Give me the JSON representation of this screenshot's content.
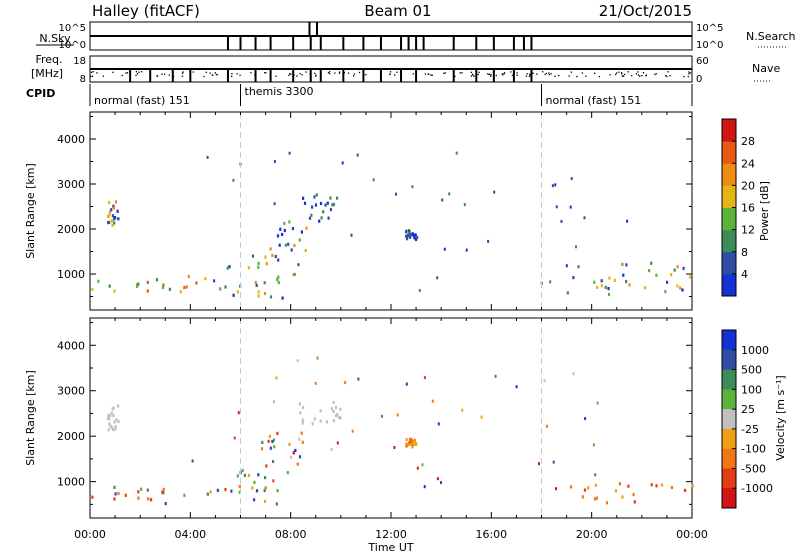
{
  "header": {
    "station": "Halley (fitACF)",
    "beam": "Beam 01",
    "date": "21/Oct/2015"
  },
  "param_panel": {
    "nsky_label": "N.Sky",
    "nsearch_label": "N.Search",
    "nsky_ticks": [
      "10^5",
      "10^0"
    ],
    "nsearch_ticks": [
      "10^5",
      "10^0"
    ],
    "freq_label": "Freq.",
    "freq_unit": "[MHz]",
    "freq_ticks": [
      "18",
      "8"
    ],
    "nave_label": "Nave",
    "nave_ticks": [
      "60",
      "0"
    ],
    "cpid_label": "CPID",
    "cpid_segments": [
      {
        "label": "normal (fast) 151",
        "start_hour": 0,
        "end_hour": 6
      },
      {
        "label": "themis 3300",
        "start_hour": 6,
        "end_hour": 18
      },
      {
        "label": "normal (fast) 151",
        "start_hour": 18,
        "end_hour": 24
      }
    ]
  },
  "x_axis": {
    "label": "Time UT",
    "tick_labels": [
      "00:00",
      "04:00",
      "08:00",
      "12:00",
      "16:00",
      "20:00",
      "00:00"
    ],
    "range_hours": [
      0,
      24
    ],
    "major_step_hours": 4
  },
  "colors": {
    "power": [
      "#1432d2",
      "#2e4ea6",
      "#3c8c5a",
      "#5ab43c",
      "#e6b414",
      "#f08c14",
      "#e65a14",
      "#d21414"
    ],
    "velocity": [
      "#1432d2",
      "#2e4ea6",
      "#3c8c5a",
      "#5ab43c",
      "#c0c0c0",
      "#f0a014",
      "#f07814",
      "#e63c14",
      "#d21414"
    ],
    "ground_scatter": "#c0c0c0",
    "guide_line": "#c8c8c8"
  },
  "chart_data": [
    {
      "type": "heatmap",
      "title": "",
      "xlabel": "Time UT",
      "ylabel": "Slant Range [km]",
      "ylim": [
        200,
        4600
      ],
      "y_tick_labels": [
        "1000",
        "2000",
        "3000",
        "4000"
      ],
      "colorbar": {
        "label": "Power [dB]",
        "range": [
          0,
          32
        ],
        "tick_labels": [
          "4",
          "8",
          "12",
          "16",
          "20",
          "24",
          "28"
        ]
      },
      "scatter_regions": [
        {
          "t": [
            0.0,
            5.5
          ],
          "r": [
            550,
            1000
          ],
          "level": "mixed-high"
        },
        {
          "t": [
            5.5,
            8.3
          ],
          "r": [
            500,
            1300
          ],
          "level": "mixed"
        },
        {
          "t": [
            6.8,
            8.6
          ],
          "r": [
            1300,
            2200
          ],
          "level": "mixed"
        },
        {
          "t": [
            8.3,
            10.0
          ],
          "r": [
            2200,
            2800
          ],
          "level": "low"
        },
        {
          "t": [
            0.6,
            1.1
          ],
          "r": [
            2100,
            2700
          ],
          "level": "mixed"
        },
        {
          "t": [
            12.5,
            13.0
          ],
          "r": [
            1800,
            2000
          ],
          "level": "low"
        },
        {
          "t": [
            19.0,
            24.0
          ],
          "r": [
            550,
            1300
          ],
          "level": "mixed"
        }
      ]
    },
    {
      "type": "heatmap",
      "title": "",
      "xlabel": "Time UT",
      "ylabel": "Slant Range [km]",
      "ylim": [
        200,
        4600
      ],
      "y_tick_labels": [
        "1000",
        "2000",
        "3000",
        "4000"
      ],
      "colorbar": {
        "label": "Velocity [m s⁻¹]",
        "tick_labels": [
          "1000",
          "500",
          "100",
          "25",
          "-25",
          "-100",
          "-500",
          "-1000"
        ]
      },
      "scatter_regions": [
        {
          "t": [
            0.0,
            5.5
          ],
          "r": [
            550,
            1000
          ],
          "level": "negative-mixed"
        },
        {
          "t": [
            5.5,
            8.3
          ],
          "r": [
            500,
            1300
          ],
          "level": "positive-mixed"
        },
        {
          "t": [
            6.8,
            8.6
          ],
          "r": [
            1300,
            2200
          ],
          "level": "mixed"
        },
        {
          "t": [
            8.3,
            10.0
          ],
          "r": [
            2200,
            2800
          ],
          "level": "ground-scatter"
        },
        {
          "t": [
            0.6,
            1.1
          ],
          "r": [
            2100,
            2700
          ],
          "level": "ground-scatter"
        },
        {
          "t": [
            12.5,
            13.0
          ],
          "r": [
            1800,
            2000
          ],
          "level": "negative"
        },
        {
          "t": [
            19.0,
            24.0
          ],
          "r": [
            550,
            1000
          ],
          "level": "negative"
        }
      ]
    }
  ]
}
